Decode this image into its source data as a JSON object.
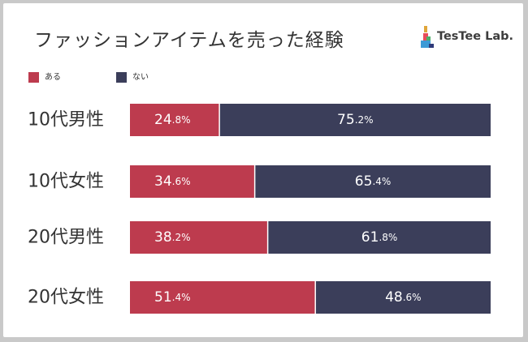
{
  "title": "ファッションアイテムを売った経験",
  "logo": {
    "text": "TesTee Lab."
  },
  "colors": {
    "yes": "#bd3b4e",
    "no": "#3b3e5a"
  },
  "chart_data": {
    "type": "bar",
    "orientation": "horizontal",
    "stacked": true,
    "percent_stacked": true,
    "title": "ファッションアイテムを売った経験",
    "categories": [
      "10代男性",
      "10代女性",
      "20代男性",
      "20代女性"
    ],
    "series": [
      {
        "name": "ある",
        "values": [
          24.8,
          34.6,
          38.2,
          51.4
        ],
        "color": "#bd3b4e"
      },
      {
        "name": "ない",
        "values": [
          75.2,
          65.4,
          61.8,
          48.6
        ],
        "color": "#3b3e5a"
      }
    ],
    "labels": {
      "ある": [
        "24.8%",
        "34.6%",
        "38.2%",
        "51.4%"
      ],
      "ない": [
        "75.2%",
        "65.4%",
        "61.8%",
        "48.6%"
      ]
    },
    "xlim": [
      0,
      100
    ],
    "legend": "top-left",
    "grid": false
  }
}
